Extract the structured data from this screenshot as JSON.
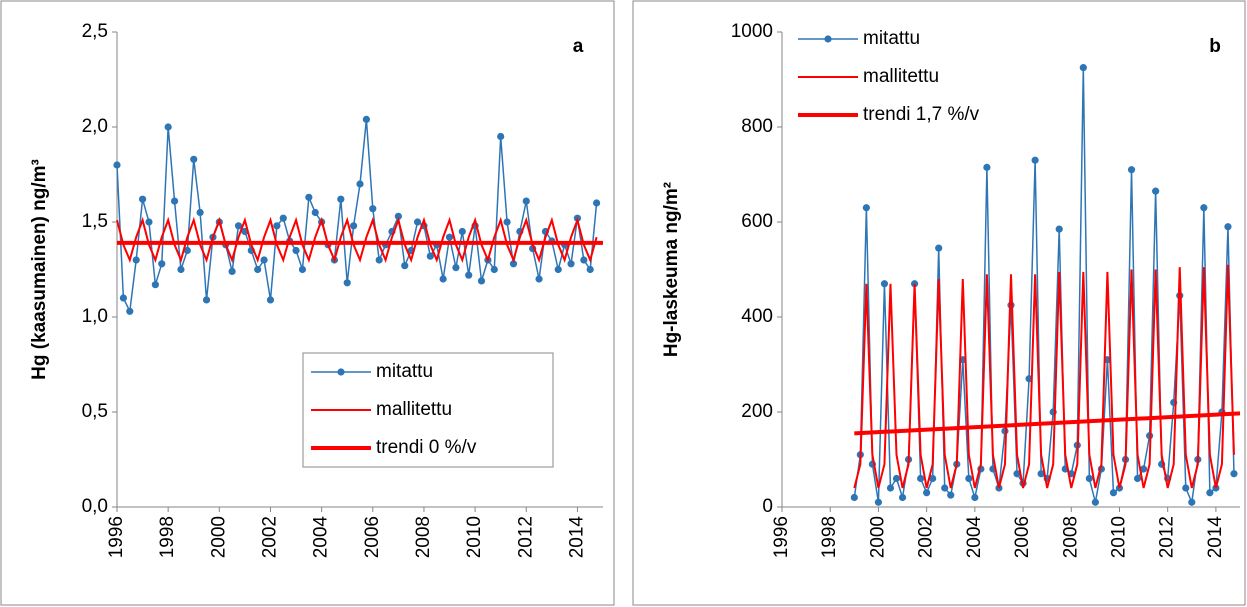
{
  "chart_data": [
    {
      "type": "line",
      "annotation": "a",
      "ylabel": "Hg (kaasumainen) ng/m³",
      "legend": "lower right",
      "xlim": [
        1996,
        2015
      ],
      "xticks": [
        1996,
        1998,
        2000,
        2002,
        2004,
        2006,
        2008,
        2010,
        2012,
        2014
      ],
      "ylim": [
        0,
        2.5
      ],
      "yticks": [
        {
          "value": 0,
          "label": "0,0"
        },
        {
          "value": 0.5,
          "label": "0,5"
        },
        {
          "value": 1,
          "label": "1,0"
        },
        {
          "value": 1.5,
          "label": "1,5"
        },
        {
          "value": 2,
          "label": "2,0"
        },
        {
          "value": 2.5,
          "label": "2,5"
        }
      ],
      "series": [
        {
          "name": "mitattu",
          "color": "#2e75b6",
          "width": 1.5,
          "marker": true,
          "x": [
            1996,
            1996.25,
            1996.5,
            1996.75,
            1997,
            1997.25,
            1997.5,
            1997.75,
            1998,
            1998.25,
            1998.5,
            1998.75,
            1999,
            1999.25,
            1999.5,
            1999.75,
            2000,
            2000.25,
            2000.5,
            2000.75,
            2001,
            2001.25,
            2001.5,
            2001.75,
            2002,
            2002.25,
            2002.5,
            2002.75,
            2003,
            2003.25,
            2003.5,
            2003.75,
            2004,
            2004.25,
            2004.5,
            2004.75,
            2005,
            2005.25,
            2005.5,
            2005.75,
            2006,
            2006.25,
            2006.5,
            2006.75,
            2007,
            2007.25,
            2007.5,
            2007.75,
            2008,
            2008.25,
            2008.5,
            2008.75,
            2009,
            2009.25,
            2009.5,
            2009.75,
            2010,
            2010.25,
            2010.5,
            2010.75,
            2011,
            2011.25,
            2011.5,
            2011.75,
            2012,
            2012.25,
            2012.5,
            2012.75,
            2013,
            2013.25,
            2013.5,
            2013.75,
            2014,
            2014.25,
            2014.5,
            2014.75
          ],
          "values": [
            1.8,
            1.1,
            1.03,
            1.3,
            1.62,
            1.5,
            1.17,
            1.28,
            2.0,
            1.61,
            1.25,
            1.35,
            1.83,
            1.55,
            1.09,
            1.42,
            1.5,
            1.38,
            1.24,
            1.48,
            1.45,
            1.35,
            1.25,
            1.3,
            1.09,
            1.48,
            1.52,
            1.4,
            1.35,
            1.25,
            1.63,
            1.55,
            1.5,
            1.38,
            1.3,
            1.62,
            1.18,
            1.48,
            1.7,
            2.04,
            1.57,
            1.3,
            1.38,
            1.45,
            1.53,
            1.27,
            1.35,
            1.5,
            1.48,
            1.32,
            1.38,
            1.2,
            1.42,
            1.26,
            1.45,
            1.22,
            1.48,
            1.19,
            1.3,
            1.25,
            1.95,
            1.5,
            1.28,
            1.45,
            1.61,
            1.36,
            1.2,
            1.45,
            1.4,
            1.25,
            1.38,
            1.28,
            1.52,
            1.3,
            1.25,
            1.6
          ]
        },
        {
          "name": "mallitettu",
          "color": "#ff0000",
          "width": 2,
          "marker": false,
          "x": [
            1996,
            1996.25,
            1996.5,
            1996.75,
            1997,
            1997.25,
            1997.5,
            1997.75,
            1998,
            1998.25,
            1998.5,
            1998.75,
            1999,
            1999.25,
            1999.5,
            1999.75,
            2000,
            2000.25,
            2000.5,
            2000.75,
            2001,
            2001.25,
            2001.5,
            2001.75,
            2002,
            2002.25,
            2002.5,
            2002.75,
            2003,
            2003.25,
            2003.5,
            2003.75,
            2004,
            2004.25,
            2004.5,
            2004.75,
            2005,
            2005.25,
            2005.5,
            2005.75,
            2006,
            2006.25,
            2006.5,
            2006.75,
            2007,
            2007.25,
            2007.5,
            2007.75,
            2008,
            2008.25,
            2008.5,
            2008.75,
            2009,
            2009.25,
            2009.5,
            2009.75,
            2010,
            2010.25,
            2010.5,
            2010.75,
            2011,
            2011.25,
            2011.5,
            2011.75,
            2012,
            2012.25,
            2012.5,
            2012.75,
            2013,
            2013.25,
            2013.5,
            2013.75,
            2014,
            2014.25,
            2014.5,
            2014.75
          ],
          "values": [
            1.51,
            1.38,
            1.3,
            1.42,
            1.51,
            1.38,
            1.3,
            1.42,
            1.51,
            1.38,
            1.3,
            1.42,
            1.51,
            1.38,
            1.3,
            1.42,
            1.51,
            1.38,
            1.3,
            1.42,
            1.51,
            1.38,
            1.3,
            1.42,
            1.51,
            1.38,
            1.3,
            1.42,
            1.51,
            1.38,
            1.3,
            1.42,
            1.51,
            1.38,
            1.3,
            1.42,
            1.51,
            1.38,
            1.3,
            1.42,
            1.51,
            1.38,
            1.3,
            1.42,
            1.51,
            1.38,
            1.3,
            1.42,
            1.51,
            1.38,
            1.3,
            1.42,
            1.51,
            1.38,
            1.3,
            1.42,
            1.51,
            1.38,
            1.3,
            1.42,
            1.51,
            1.38,
            1.3,
            1.42,
            1.51,
            1.38,
            1.3,
            1.42,
            1.51,
            1.38,
            1.3,
            1.42,
            1.51,
            1.38,
            1.3,
            1.42
          ]
        },
        {
          "name": "trendi 0 %/v",
          "color": "#ff0000",
          "width": 4,
          "marker": false,
          "x": [
            1996,
            2015
          ],
          "values": [
            1.39,
            1.39
          ]
        }
      ]
    },
    {
      "type": "line",
      "annotation": "b",
      "ylabel": "Hg-laskeuma ng/m²",
      "legend": "upper left",
      "xlim": [
        1996,
        2015
      ],
      "xticks": [
        1996,
        1998,
        2000,
        2002,
        2004,
        2006,
        2008,
        2010,
        2012,
        2014
      ],
      "ylim": [
        0,
        1000
      ],
      "yticks": [
        0,
        200,
        400,
        600,
        800,
        1000
      ],
      "series": [
        {
          "name": "mitattu",
          "color": "#2e75b6",
          "width": 1.5,
          "marker": true,
          "x": [
            1999,
            1999.25,
            1999.5,
            1999.75,
            2000,
            2000.25,
            2000.5,
            2000.75,
            2001,
            2001.25,
            2001.5,
            2001.75,
            2002,
            2002.25,
            2002.5,
            2002.75,
            2003,
            2003.25,
            2003.5,
            2003.75,
            2004,
            2004.25,
            2004.5,
            2004.75,
            2005,
            2005.25,
            2005.5,
            2005.75,
            2006,
            2006.25,
            2006.5,
            2006.75,
            2007,
            2007.25,
            2007.5,
            2007.75,
            2008,
            2008.25,
            2008.5,
            2008.75,
            2009,
            2009.25,
            2009.5,
            2009.75,
            2010,
            2010.25,
            2010.5,
            2010.75,
            2011,
            2011.25,
            2011.5,
            2011.75,
            2012,
            2012.25,
            2012.5,
            2012.75,
            2013,
            2013.25,
            2013.5,
            2013.75,
            2014,
            2014.25,
            2014.5,
            2014.75
          ],
          "values": [
            20,
            110,
            630,
            90,
            10,
            470,
            40,
            60,
            20,
            100,
            470,
            60,
            30,
            60,
            545,
            40,
            25,
            90,
            310,
            60,
            20,
            80,
            715,
            80,
            40,
            160,
            425,
            70,
            50,
            270,
            730,
            70,
            60,
            200,
            585,
            80,
            70,
            130,
            925,
            60,
            10,
            80,
            310,
            30,
            40,
            100,
            710,
            60,
            80,
            150,
            665,
            90,
            60,
            220,
            445,
            40,
            10,
            100,
            630,
            30,
            40,
            200,
            590,
            70
          ]
        },
        {
          "name": "mallitettu",
          "color": "#ff0000",
          "width": 2,
          "marker": false,
          "x": [
            1999,
            1999.25,
            1999.5,
            1999.75,
            2000,
            2000.25,
            2000.5,
            2000.75,
            2001,
            2001.25,
            2001.5,
            2001.75,
            2002,
            2002.25,
            2002.5,
            2002.75,
            2003,
            2003.25,
            2003.5,
            2003.75,
            2004,
            2004.25,
            2004.5,
            2004.75,
            2005,
            2005.25,
            2005.5,
            2005.75,
            2006,
            2006.25,
            2006.5,
            2006.75,
            2007,
            2007.25,
            2007.5,
            2007.75,
            2008,
            2008.25,
            2008.5,
            2008.75,
            2009,
            2009.25,
            2009.5,
            2009.75,
            2010,
            2010.25,
            2010.5,
            2010.75,
            2011,
            2011.25,
            2011.5,
            2011.75,
            2012,
            2012.25,
            2012.5,
            2012.75,
            2013,
            2013.25,
            2013.5,
            2013.75,
            2014,
            2014.25,
            2014.5,
            2014.75
          ],
          "values": [
            40,
            90,
            470,
            110,
            40,
            90,
            470,
            110,
            40,
            90,
            470,
            110,
            40,
            90,
            480,
            110,
            40,
            90,
            480,
            110,
            40,
            90,
            490,
            110,
            40,
            90,
            490,
            110,
            40,
            90,
            490,
            110,
            40,
            90,
            495,
            110,
            40,
            90,
            495,
            110,
            40,
            90,
            495,
            110,
            40,
            90,
            500,
            110,
            40,
            90,
            500,
            110,
            40,
            90,
            505,
            110,
            40,
            90,
            505,
            110,
            40,
            90,
            510,
            110
          ]
        },
        {
          "name": "trendi 1,7 %/v",
          "color": "#ff0000",
          "width": 4,
          "marker": false,
          "x": [
            1999,
            2015
          ],
          "values": [
            155,
            197
          ]
        }
      ]
    }
  ]
}
